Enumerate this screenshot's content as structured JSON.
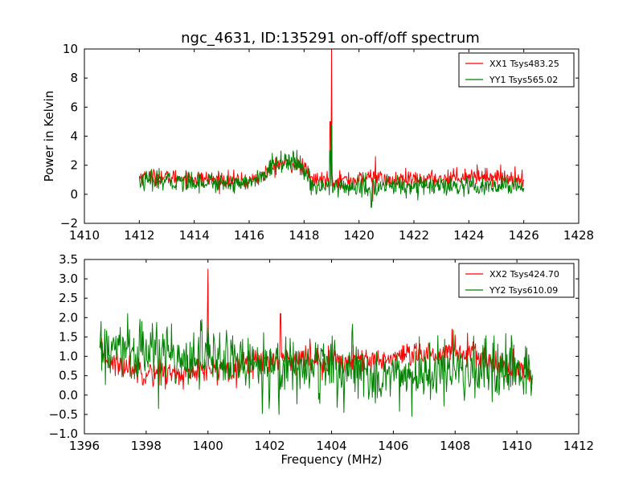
{
  "figure": {
    "title": "ngc_4631, ID:135291 on-off/off spectrum"
  },
  "chart_data": [
    {
      "type": "line",
      "title": "ngc_4631, ID:135291 on-off/off spectrum",
      "xlabel": "",
      "ylabel": "Power in Kelvin",
      "xlim": [
        1410,
        1428
      ],
      "ylim": [
        -2,
        10
      ],
      "xticks": [
        "1410",
        "1412",
        "1414",
        "1416",
        "1418",
        "1420",
        "1422",
        "1424",
        "1426",
        "1428"
      ],
      "yticks": [
        "−2",
        "0",
        "2",
        "4",
        "6",
        "8",
        "10"
      ],
      "x_range": [
        1412,
        1426
      ],
      "legend_position": "top-right",
      "series": [
        {
          "name": "XX1 Tsys483.25",
          "color": "#ff0000",
          "profile": [
            [
              1412,
              1.2
            ],
            [
              1414,
              1.1
            ],
            [
              1415,
              1.0
            ],
            [
              1416,
              0.9
            ],
            [
              1416.5,
              1.3
            ],
            [
              1417,
              2.1
            ],
            [
              1417.5,
              2.1
            ],
            [
              1418,
              1.8
            ],
            [
              1418.3,
              1.0
            ],
            [
              1419,
              1.0
            ],
            [
              1420,
              1.0
            ],
            [
              1420.5,
              1.3
            ],
            [
              1421,
              0.9
            ],
            [
              1422,
              1.0
            ],
            [
              1423,
              1.1
            ],
            [
              1424,
              1.3
            ],
            [
              1425,
              1.2
            ],
            [
              1426,
              1.1
            ]
          ],
          "noise": 0.28,
          "spikes": [
            [
              1419.0,
              10.0
            ],
            [
              1418.95,
              5.0
            ],
            [
              1420.6,
              2.6
            ],
            [
              1420.5,
              -0.5
            ]
          ]
        },
        {
          "name": "YY1 Tsys565.02",
          "color": "#008000",
          "profile": [
            [
              1412,
              0.9
            ],
            [
              1414,
              0.9
            ],
            [
              1415,
              0.8
            ],
            [
              1416,
              0.8
            ],
            [
              1416.5,
              1.2
            ],
            [
              1417,
              2.2
            ],
            [
              1417.5,
              2.3
            ],
            [
              1418,
              1.7
            ],
            [
              1418.3,
              0.6
            ],
            [
              1419,
              0.5
            ],
            [
              1420,
              0.5
            ],
            [
              1420.5,
              0.4
            ],
            [
              1421,
              0.6
            ],
            [
              1422,
              0.6
            ],
            [
              1423,
              0.5
            ],
            [
              1424,
              0.4
            ],
            [
              1425,
              0.5
            ],
            [
              1426,
              0.6
            ]
          ],
          "noise": 0.35,
          "spikes": [
            [
              1419.0,
              4.8
            ],
            [
              1418.95,
              3.0
            ],
            [
              1420.45,
              -0.9
            ]
          ]
        }
      ]
    },
    {
      "type": "line",
      "title": "",
      "xlabel": "Frequency (MHz)",
      "ylabel": "",
      "xlim": [
        1396,
        1412
      ],
      "ylim": [
        -1.0,
        3.5
      ],
      "xticks": [
        "1396",
        "1398",
        "1400",
        "1402",
        "1404",
        "1406",
        "1408",
        "1410",
        "1412"
      ],
      "yticks": [
        "−1.0",
        "−0.5",
        "0.0",
        "0.5",
        "1.0",
        "1.5",
        "2.0",
        "2.5",
        "3.0",
        "3.5"
      ],
      "x_range": [
        1396.5,
        1410.5
      ],
      "legend_position": "top-right",
      "series": [
        {
          "name": "XX2 Tsys424.70",
          "color": "#ff0000",
          "profile": [
            [
              1396.5,
              1.1
            ],
            [
              1397,
              0.8
            ],
            [
              1398,
              0.6
            ],
            [
              1399,
              0.55
            ],
            [
              1400,
              0.6
            ],
            [
              1401,
              0.8
            ],
            [
              1402,
              0.95
            ],
            [
              1403,
              0.95
            ],
            [
              1404,
              0.9
            ],
            [
              1405,
              0.85
            ],
            [
              1406,
              0.95
            ],
            [
              1407,
              1.0
            ],
            [
              1408,
              1.15
            ],
            [
              1409,
              0.9
            ],
            [
              1410,
              0.6
            ],
            [
              1410.5,
              0.55
            ]
          ],
          "noise": 0.17,
          "spikes": [
            [
              1400.0,
              3.25
            ],
            [
              1399.98,
              2.0
            ],
            [
              1402.35,
              2.1
            ],
            [
              1407.9,
              1.7
            ],
            [
              1408.4,
              1.6
            ]
          ]
        },
        {
          "name": "YY2 Tsys610.09",
          "color": "#008000",
          "profile": [
            [
              1396.5,
              1.1
            ],
            [
              1397,
              1.15
            ],
            [
              1398,
              1.1
            ],
            [
              1399,
              1.05
            ],
            [
              1400,
              1.0
            ],
            [
              1401,
              0.85
            ],
            [
              1402,
              0.8
            ],
            [
              1403,
              0.75
            ],
            [
              1404,
              0.7
            ],
            [
              1405,
              0.55
            ],
            [
              1406,
              0.5
            ],
            [
              1407,
              0.55
            ],
            [
              1408,
              0.6
            ],
            [
              1409,
              0.55
            ],
            [
              1410,
              0.55
            ],
            [
              1410.5,
              0.6
            ]
          ],
          "noise": 0.38,
          "spikes": [
            [
              1397.4,
              2.1
            ],
            [
              1399.8,
              1.95
            ],
            [
              1398.2,
              1.85
            ],
            [
              1402.3,
              -0.5
            ],
            [
              1404.4,
              -0.45
            ],
            [
              1406.6,
              -0.55
            ],
            [
              1398.4,
              -0.35
            ]
          ]
        }
      ]
    }
  ]
}
